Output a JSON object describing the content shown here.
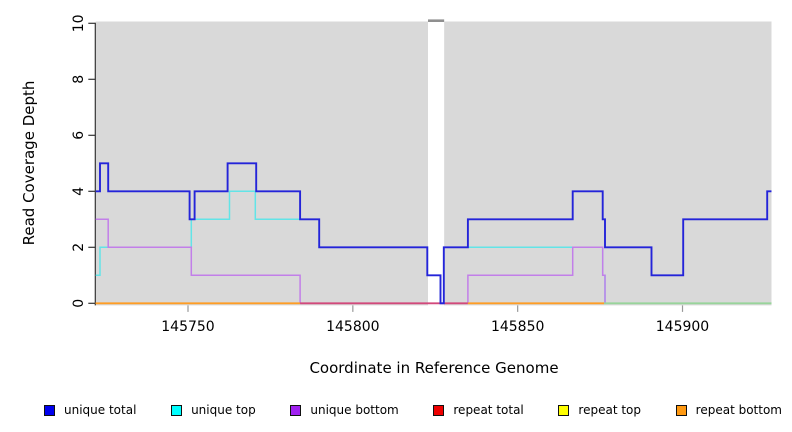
{
  "chart_data": {
    "type": "line",
    "style": "step",
    "title": "",
    "xlabel": "Coordinate in Reference Genome",
    "ylabel": "Read Coverage Depth",
    "xlim": [
      145722,
      145927
    ],
    "ylim": [
      0,
      10
    ],
    "x_ticks": [
      145750,
      145800,
      145850,
      145900
    ],
    "y_ticks": [
      0,
      2,
      4,
      6,
      8,
      10
    ],
    "grid": false,
    "legend_position": "bottom",
    "plot_bg": "#d9d9d9",
    "page_bg": "#ffffff",
    "no_data_gap": {
      "x_start": 145822.8,
      "x_end": 145827.7,
      "cap_color": "#8f8f8f"
    },
    "series": [
      {
        "name": "unique total",
        "line_color": "#2424d9",
        "legend_color": "#0000ee",
        "steps": [
          [
            145722,
            4
          ],
          [
            145723.3,
            5
          ],
          [
            145725.8,
            4
          ],
          [
            145750.5,
            3
          ],
          [
            145752,
            4
          ],
          [
            145762,
            5
          ],
          [
            145770.7,
            4
          ],
          [
            145784,
            3
          ],
          [
            145789.8,
            2
          ],
          [
            145822.6,
            1
          ],
          [
            145826.6,
            0
          ],
          [
            145827.6,
            2
          ],
          [
            145834.9,
            3
          ],
          [
            145866.7,
            4
          ],
          [
            145875.8,
            3
          ],
          [
            145876.5,
            2
          ],
          [
            145890.6,
            1
          ],
          [
            145900.2,
            3
          ],
          [
            145925.7,
            4
          ],
          [
            145927,
            4
          ]
        ]
      },
      {
        "name": "unique top",
        "line_color": "#62e4e7",
        "legend_color": "#00ffff",
        "steps": [
          [
            145722,
            1
          ],
          [
            145723.3,
            2
          ],
          [
            145751,
            3
          ],
          [
            145762.6,
            4
          ],
          [
            145770.4,
            3
          ],
          [
            145789.8,
            2
          ],
          [
            145822.6,
            1
          ],
          [
            145826.6,
            0
          ],
          [
            145827.6,
            2
          ],
          [
            145875.8,
            1
          ],
          [
            145876.5,
            0
          ],
          [
            145927,
            0
          ]
        ]
      },
      {
        "name": "unique bottom",
        "line_color": "#c27fe9",
        "legend_color": "#a021f0",
        "steps": [
          [
            145722,
            3
          ],
          [
            145725.8,
            2
          ],
          [
            145751,
            1
          ],
          [
            145784,
            0
          ],
          [
            145834.9,
            1
          ],
          [
            145866.7,
            2
          ],
          [
            145875.8,
            1
          ],
          [
            145876.5,
            0
          ],
          [
            145927,
            0
          ]
        ]
      },
      {
        "name": "repeat total",
        "line_color": "#ee1111",
        "legend_color": "#ee0000",
        "steps": [
          [
            145722,
            0
          ],
          [
            145927,
            0
          ]
        ]
      },
      {
        "name": "repeat top",
        "line_color": "#ffff33",
        "legend_color": "#ffff00",
        "steps": [
          [
            145722,
            0
          ],
          [
            145927,
            0
          ]
        ]
      },
      {
        "name": "repeat bottom",
        "line_color": "#ff9d24",
        "legend_color": "#ff9912",
        "steps": [
          [
            145722,
            0
          ],
          [
            145927,
            0
          ]
        ]
      }
    ],
    "zero_line_segments": [
      {
        "color": "#ff9d24",
        "x_start": 145722,
        "x_end": 145784
      },
      {
        "color": "#d2497b",
        "x_start": 145784,
        "x_end": 145834.9
      },
      {
        "color": "#ff9d24",
        "x_start": 145834.9,
        "x_end": 145876.2
      },
      {
        "color": "#98d49a",
        "x_start": 145876.2,
        "x_end": 145927
      }
    ],
    "legend": [
      {
        "label": "unique total",
        "color": "#0000ee"
      },
      {
        "label": "unique top",
        "color": "#00ffff"
      },
      {
        "label": "unique bottom",
        "color": "#a021f0"
      },
      {
        "label": "repeat total",
        "color": "#ee0000"
      },
      {
        "label": "repeat top",
        "color": "#ffff00"
      },
      {
        "label": "repeat bottom",
        "color": "#ff9912"
      }
    ]
  }
}
